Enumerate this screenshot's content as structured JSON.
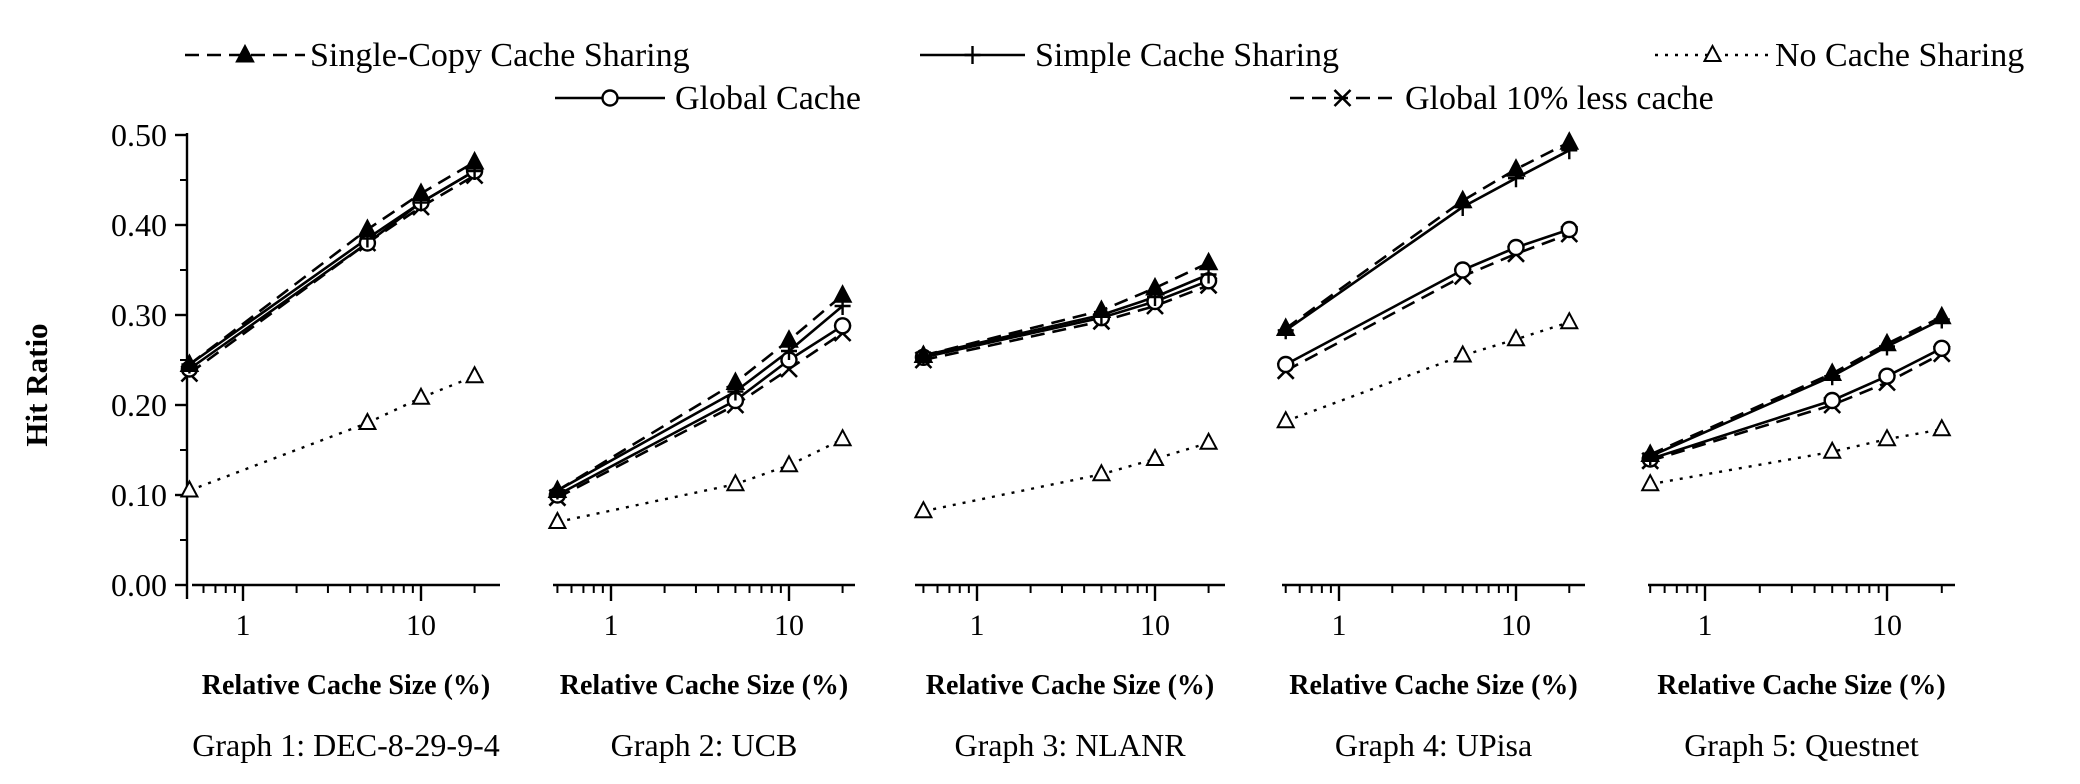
{
  "figure": {
    "ylabel": "Hit Ratio",
    "xlabel": "Relative Cache Size (%)"
  },
  "legend": [
    {
      "key": "single",
      "label": "Single-Copy Cache Sharing",
      "style": "dashed",
      "marker": "filled-triangle"
    },
    {
      "key": "simple",
      "label": "Simple Cache Sharing",
      "style": "solid",
      "marker": "plus"
    },
    {
      "key": "none",
      "label": "No Cache Sharing",
      "style": "dotted",
      "marker": "open-triangle"
    },
    {
      "key": "global",
      "label": "Global Cache",
      "style": "solid",
      "marker": "open-circle"
    },
    {
      "key": "global10",
      "label": "Global 10% less cache",
      "style": "dashed",
      "marker": "x"
    }
  ],
  "chart_data": [
    {
      "type": "line",
      "title": "Graph 1: DEC-8-29-9-4",
      "xlabel": "Relative Cache Size (%)",
      "ylabel": "Hit Ratio",
      "xscale": "log",
      "x": [
        0.5,
        5,
        10,
        20
      ],
      "xticks": [
        "1",
        "10"
      ],
      "yticks": [
        "0.00",
        "0.10",
        "0.20",
        "0.30",
        "0.40",
        "0.50"
      ],
      "ylim": [
        0,
        0.5
      ],
      "series": [
        {
          "name": "Single-Copy Cache Sharing",
          "values": [
            0.245,
            0.395,
            0.435,
            0.47
          ]
        },
        {
          "name": "Simple Cache Sharing",
          "values": [
            0.245,
            0.385,
            0.425,
            0.46
          ]
        },
        {
          "name": "Global Cache",
          "values": [
            0.24,
            0.38,
            0.425,
            0.46
          ]
        },
        {
          "name": "Global 10% less cache",
          "values": [
            0.235,
            0.38,
            0.42,
            0.455
          ]
        },
        {
          "name": "No Cache Sharing",
          "values": [
            0.105,
            0.18,
            0.208,
            0.232
          ]
        }
      ]
    },
    {
      "type": "line",
      "title": "Graph 2: UCB",
      "xlabel": "Relative Cache Size (%)",
      "xscale": "log",
      "x": [
        0.5,
        5,
        10,
        20
      ],
      "xticks": [
        "1",
        "10"
      ],
      "ylim": [
        0,
        0.5
      ],
      "series": [
        {
          "name": "Single-Copy Cache Sharing",
          "values": [
            0.105,
            0.225,
            0.272,
            0.322
          ]
        },
        {
          "name": "Simple Cache Sharing",
          "values": [
            0.105,
            0.215,
            0.26,
            0.31
          ]
        },
        {
          "name": "Global Cache",
          "values": [
            0.1,
            0.205,
            0.25,
            0.288
          ]
        },
        {
          "name": "Global 10% less cache",
          "values": [
            0.097,
            0.2,
            0.24,
            0.28
          ]
        },
        {
          "name": "No Cache Sharing",
          "values": [
            0.07,
            0.112,
            0.133,
            0.162
          ]
        }
      ]
    },
    {
      "type": "line",
      "title": "Graph 3: NLANR",
      "xlabel": "Relative Cache Size (%)",
      "xscale": "log",
      "x": [
        0.5,
        5,
        10,
        20
      ],
      "xticks": [
        "1",
        "10"
      ],
      "ylim": [
        0,
        0.5
      ],
      "series": [
        {
          "name": "Single-Copy Cache Sharing",
          "values": [
            0.255,
            0.305,
            0.33,
            0.358
          ]
        },
        {
          "name": "Simple Cache Sharing",
          "values": [
            0.255,
            0.3,
            0.32,
            0.345
          ]
        },
        {
          "name": "Global Cache",
          "values": [
            0.253,
            0.297,
            0.315,
            0.338
          ]
        },
        {
          "name": "Global 10% less cache",
          "values": [
            0.25,
            0.293,
            0.31,
            0.333
          ]
        },
        {
          "name": "No Cache Sharing",
          "values": [
            0.082,
            0.123,
            0.14,
            0.158
          ]
        }
      ]
    },
    {
      "type": "line",
      "title": "Graph 4: UPisa",
      "xlabel": "Relative Cache Size (%)",
      "xscale": "log",
      "x": [
        0.5,
        5,
        10,
        20
      ],
      "xticks": [
        "1",
        "10"
      ],
      "ylim": [
        0,
        0.5
      ],
      "series": [
        {
          "name": "Single-Copy Cache Sharing",
          "values": [
            0.285,
            0.427,
            0.462,
            0.492
          ]
        },
        {
          "name": "Simple Cache Sharing",
          "values": [
            0.283,
            0.42,
            0.452,
            0.483
          ]
        },
        {
          "name": "Global Cache",
          "values": [
            0.245,
            0.35,
            0.375,
            0.395
          ]
        },
        {
          "name": "Global 10% less cache",
          "values": [
            0.238,
            0.343,
            0.368,
            0.39
          ]
        },
        {
          "name": "No Cache Sharing",
          "values": [
            0.182,
            0.255,
            0.273,
            0.292
          ]
        }
      ]
    },
    {
      "type": "line",
      "title": "Graph 5: Questnet",
      "xlabel": "Relative Cache Size (%)",
      "xscale": "log",
      "x": [
        0.5,
        5,
        10,
        20
      ],
      "xticks": [
        "1",
        "10"
      ],
      "ylim": [
        0,
        0.5
      ],
      "series": [
        {
          "name": "Single-Copy Cache Sharing",
          "values": [
            0.145,
            0.235,
            0.268,
            0.298
          ]
        },
        {
          "name": "Simple Cache Sharing",
          "values": [
            0.143,
            0.232,
            0.265,
            0.295
          ]
        },
        {
          "name": "Global Cache",
          "values": [
            0.14,
            0.205,
            0.232,
            0.263
          ]
        },
        {
          "name": "Global 10% less cache",
          "values": [
            0.138,
            0.2,
            0.225,
            0.257
          ]
        },
        {
          "name": "No Cache Sharing",
          "values": [
            0.112,
            0.148,
            0.162,
            0.173
          ]
        }
      ]
    }
  ]
}
